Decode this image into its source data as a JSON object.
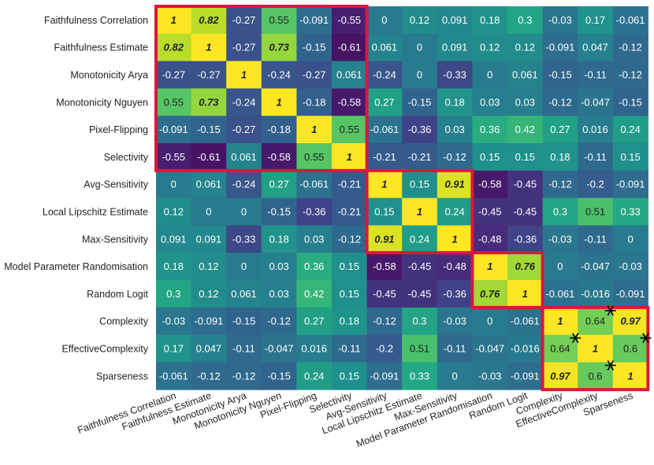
{
  "chart_data": {
    "type": "heatmap",
    "colormap": "viridis",
    "value_range": [
      -0.7,
      1
    ],
    "labels": [
      "Faithfulness Correlation",
      "Faithfulness Estimate",
      "Monotonicity Arya",
      "Monotonicity Nguyen",
      "Pixel-Flipping",
      "Selectivity",
      "Avg-Sensitivity",
      "Local Lipschitz Estimate",
      "Max-Sensitivity",
      "Model Parameter Randomisation",
      "Random Logit",
      "Complexity",
      "EffectiveComplexity",
      "Sparseness"
    ],
    "values": [
      [
        1,
        0.82,
        -0.27,
        0.55,
        -0.091,
        -0.55,
        0,
        0.12,
        0.091,
        0.18,
        0.3,
        -0.03,
        0.17,
        -0.061
      ],
      [
        0.82,
        1,
        -0.27,
        0.73,
        -0.15,
        -0.61,
        0.061,
        0,
        0.091,
        0.12,
        0.12,
        -0.091,
        0.047,
        -0.12
      ],
      [
        -0.27,
        -0.27,
        1,
        -0.24,
        -0.27,
        0.061,
        -0.24,
        0,
        -0.33,
        0,
        0.061,
        -0.15,
        -0.11,
        -0.12
      ],
      [
        0.55,
        0.73,
        -0.24,
        1,
        -0.18,
        -0.58,
        0.27,
        -0.15,
        0.18,
        0.03,
        0.03,
        -0.12,
        -0.047,
        -0.15
      ],
      [
        -0.091,
        -0.15,
        -0.27,
        -0.18,
        1,
        0.55,
        -0.061,
        -0.36,
        0.03,
        0.36,
        0.42,
        0.27,
        0.016,
        0.24
      ],
      [
        -0.55,
        -0.61,
        0.061,
        -0.58,
        0.55,
        1,
        -0.21,
        -0.21,
        -0.12,
        0.15,
        0.15,
        0.18,
        -0.11,
        0.15
      ],
      [
        0,
        0.061,
        -0.24,
        0.27,
        -0.061,
        -0.21,
        1,
        0.15,
        0.91,
        -0.58,
        -0.45,
        -0.12,
        -0.2,
        -0.091
      ],
      [
        0.12,
        0,
        0,
        -0.15,
        -0.36,
        -0.21,
        0.15,
        1,
        0.24,
        -0.45,
        -0.45,
        0.3,
        0.51,
        0.33
      ],
      [
        0.091,
        0.091,
        -0.33,
        0.18,
        0.03,
        -0.12,
        0.91,
        0.24,
        1,
        -0.48,
        -0.36,
        -0.03,
        -0.11,
        0
      ],
      [
        0.18,
        0.12,
        0,
        0.03,
        0.36,
        0.15,
        -0.58,
        -0.45,
        -0.48,
        1,
        0.76,
        0,
        -0.047,
        -0.03
      ],
      [
        0.3,
        0.12,
        0.061,
        0.03,
        0.42,
        0.15,
        -0.45,
        -0.45,
        -0.36,
        0.76,
        1,
        -0.061,
        -0.016,
        -0.091
      ],
      [
        -0.03,
        -0.091,
        -0.15,
        -0.12,
        0.27,
        0.18,
        -0.12,
        0.3,
        -0.03,
        0,
        -0.061,
        1,
        0.64,
        0.97
      ],
      [
        0.17,
        0.047,
        -0.11,
        -0.047,
        0.016,
        -0.11,
        -0.2,
        0.51,
        -0.11,
        -0.047,
        -0.016,
        0.64,
        1,
        0.6
      ],
      [
        -0.061,
        -0.12,
        -0.12,
        -0.15,
        0.24,
        0.15,
        -0.091,
        0.33,
        0,
        -0.03,
        -0.091,
        0.97,
        0.6,
        1
      ]
    ],
    "highlight_groups": [
      [
        0,
        5
      ],
      [
        6,
        8
      ],
      [
        9,
        10
      ],
      [
        11,
        13
      ]
    ],
    "highlight_color": "#d9173f",
    "bold_italic_threshold": 0.7,
    "starred_cells": [
      [
        11,
        12
      ],
      [
        12,
        11
      ],
      [
        12,
        13
      ],
      [
        13,
        12
      ]
    ]
  }
}
